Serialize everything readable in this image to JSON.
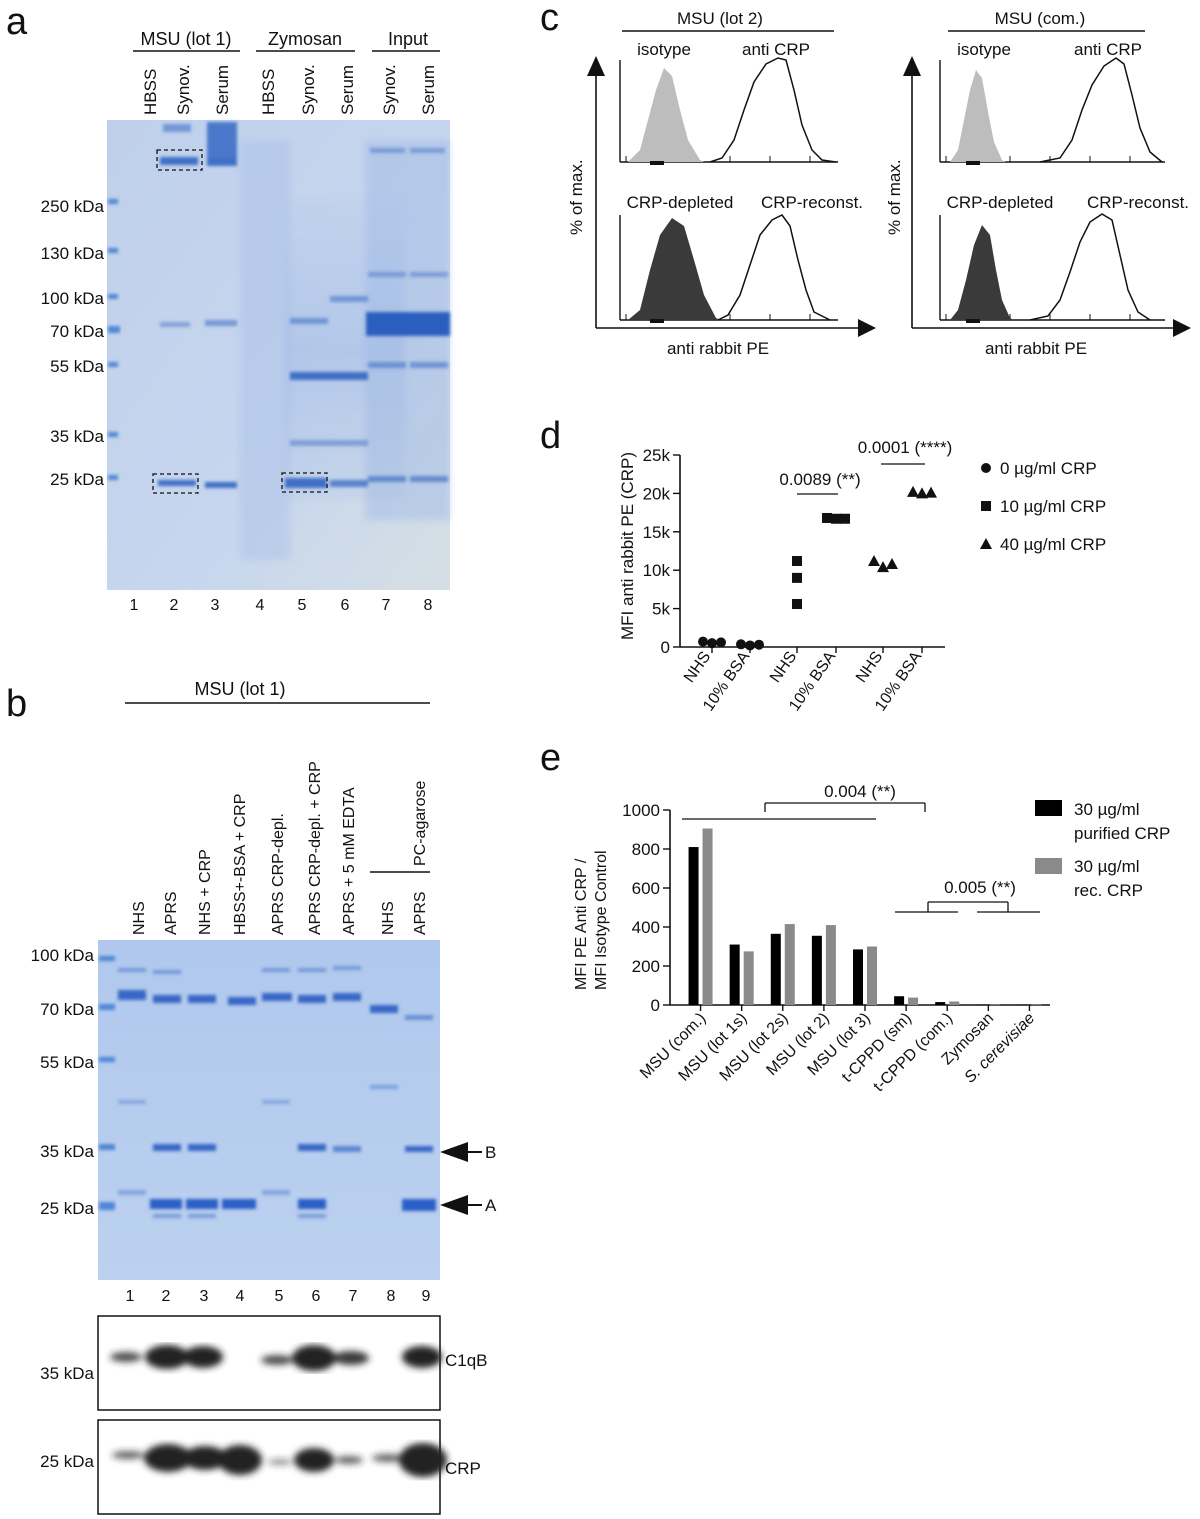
{
  "panels": {
    "a": {
      "letter": "a",
      "groups": [
        "MSU (lot 1)",
        "Zymosan",
        "Input"
      ],
      "lanes": [
        "HBSS",
        "Synov.",
        "Serum",
        "HBSS",
        "Synov.",
        "Serum",
        "Synov.",
        "Serum"
      ],
      "lane_numbers": [
        "1",
        "2",
        "3",
        "4",
        "5",
        "6",
        "7",
        "8"
      ],
      "markers": [
        "250 kDa",
        "130 kDa",
        "100 kDa",
        "70 kDa",
        "55 kDa",
        "35 kDa",
        "25 kDa"
      ],
      "colors": {
        "gel": "#c3d3ec",
        "band": "#3f6fc6",
        "marker": "#4f86d6"
      }
    },
    "b": {
      "letter": "b",
      "group": "MSU (lot 1)",
      "subgroup": "PC-agarose",
      "lanes": [
        "NHS",
        "APRS",
        "NHS + CRP",
        "HBSS+-BSA + CRP",
        "APRS CRP-depl.",
        "APRS CRP-depl. + CRP",
        "APRS + 5 mM EDTA",
        "NHS",
        "APRS"
      ],
      "lane_numbers": [
        "1",
        "2",
        "3",
        "4",
        "5",
        "6",
        "7",
        "8",
        "9"
      ],
      "markers": [
        "100 kDa",
        "70 kDa",
        "55 kDa",
        "35 kDa",
        "25 kDa"
      ],
      "arrows": [
        "B",
        "A"
      ],
      "blot_markers": [
        "35 kDa",
        "25 kDa"
      ],
      "blot_labels": [
        "C1qB",
        "CRP"
      ],
      "colors": {
        "gel": "#b4cbee"
      }
    },
    "c": {
      "letter": "c",
      "titles": [
        "MSU (lot 2)",
        "MSU (com.)"
      ],
      "top_labels": [
        "isotype",
        "anti CRP"
      ],
      "bottom_labels": [
        "CRP-depleted",
        "CRP-reconst."
      ],
      "ylabel": "% of max.",
      "xlabel": "anti rabbit PE",
      "colors": {
        "isotype_fill": "#bdbdbd",
        "depleted_fill": "#3a3a3a"
      }
    },
    "d": {
      "letter": "d",
      "ylabel": "MFI anti rabbit PE (CRP)",
      "yticks": [
        "0",
        "5k",
        "10k",
        "15k",
        "20k",
        "25k"
      ],
      "xlabels": [
        "NHS",
        "10% BSA",
        "NHS",
        "10% BSA",
        "NHS",
        "10% BSA"
      ],
      "legend": [
        "0 µg/ml CRP",
        "10 µg/ml CRP",
        "40 µg/ml CRP"
      ],
      "annotations": [
        "0.0089 (**)",
        "0.0001 (****)"
      ]
    },
    "e": {
      "letter": "e",
      "ylabel_line1": "MFI PE Anti CRP /",
      "ylabel_line2": "MFI Isotype Control",
      "annotations": [
        "0.004 (**)",
        "0.005 (**)"
      ],
      "legend": [
        {
          "line1": "30 µg/ml",
          "line2": "purified CRP"
        },
        {
          "line1": "30 µg/ml",
          "line2": "rec. CRP"
        }
      ]
    }
  },
  "chart_data": [
    {
      "id": "panel-d",
      "type": "scatter",
      "ylabel": "MFI anti rabbit PE (CRP)",
      "ylim": [
        0,
        25000
      ],
      "categories": [
        "NHS",
        "10% BSA",
        "NHS",
        "10% BSA",
        "NHS",
        "10% BSA"
      ],
      "series": [
        {
          "name": "0 µg/ml CRP",
          "marker": "circle",
          "points": [
            [
              0,
              700
            ],
            [
              0,
              500
            ],
            [
              0,
              600
            ],
            [
              1,
              350
            ],
            [
              1,
              200
            ],
            [
              1,
              300
            ]
          ]
        },
        {
          "name": "10 µg/ml CRP",
          "marker": "square",
          "points": [
            [
              2,
              11200
            ],
            [
              2,
              9000
            ],
            [
              2,
              5600
            ],
            [
              3,
              16800
            ],
            [
              3,
              16700
            ],
            [
              3,
              16700
            ]
          ]
        },
        {
          "name": "40 µg/ml CRP",
          "marker": "triangle",
          "points": [
            [
              4,
              11200
            ],
            [
              4,
              10400
            ],
            [
              4,
              10800
            ],
            [
              5,
              20200
            ],
            [
              5,
              20000
            ],
            [
              5,
              20100
            ]
          ]
        }
      ]
    },
    {
      "id": "panel-e",
      "type": "bar",
      "ylabel": "MFI PE Anti CRP / MFI Isotype Control",
      "ylim": [
        0,
        1000
      ],
      "yticks": [
        0,
        200,
        400,
        600,
        800,
        1000
      ],
      "categories": [
        "MSU (com.)",
        "MSU (lot 1s)",
        "MSU (lot 2s)",
        "MSU (lot 2)",
        "MSU (lot 3)",
        "t-CPPD  (sm)",
        "t-CPPD (com.)",
        "Zymosan",
        "S. cerevisiae"
      ],
      "series": [
        {
          "name": "30 µg/ml purified CRP",
          "color": "#000000",
          "values": [
            810,
            310,
            365,
            355,
            285,
            45,
            15,
            2,
            2
          ]
        },
        {
          "name": "30 µg/ml rec. CRP",
          "color": "#8a8a8a",
          "values": [
            905,
            275,
            415,
            410,
            300,
            38,
            18,
            2,
            2
          ]
        }
      ]
    }
  ]
}
